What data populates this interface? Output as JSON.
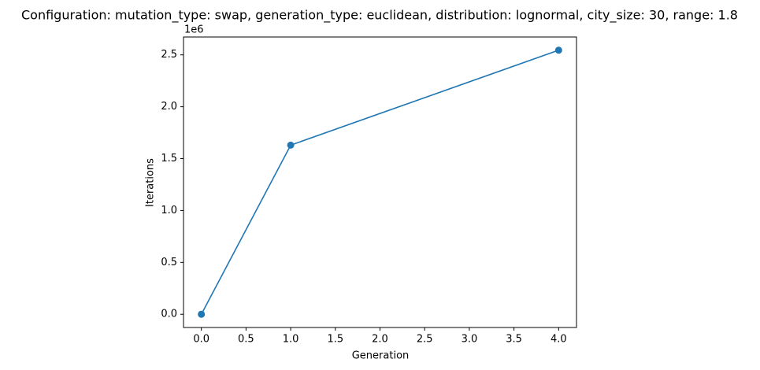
{
  "chart_data": {
    "type": "line",
    "title": "Configuration: mutation_type: swap, generation_type: euclidean, distribution: lognormal, city_size: 30, range: 1.8",
    "x_label": "Generation",
    "y_label": "Iterations",
    "y_offset_label": "1e6",
    "x": [
      0,
      1,
      4
    ],
    "values": [
      0,
      1630000,
      2545000
    ],
    "color": "#1f77b4",
    "markers": true,
    "xlim": [
      -0.2,
      4.2
    ],
    "xticks": [
      {
        "value": 0,
        "label": "0.0"
      },
      {
        "value": 0.5,
        "label": "0.5"
      },
      {
        "value": 1,
        "label": "1.0"
      },
      {
        "value": 1.5,
        "label": "1.5"
      },
      {
        "value": 2,
        "label": "2.0"
      },
      {
        "value": 2.5,
        "label": "2.5"
      },
      {
        "value": 3,
        "label": "3.0"
      },
      {
        "value": 3.5,
        "label": "3.5"
      },
      {
        "value": 4,
        "label": "4.0"
      }
    ],
    "ylim": [
      -127250,
      2672250
    ],
    "yticks": [
      {
        "value": 0,
        "label": "0.0"
      },
      {
        "value": 500000,
        "label": "0.5"
      },
      {
        "value": 1000000,
        "label": "1.0"
      },
      {
        "value": 1500000,
        "label": "1.5"
      },
      {
        "value": 2000000,
        "label": "2.0"
      },
      {
        "value": 2500000,
        "label": "2.5"
      }
    ],
    "grid": false
  }
}
